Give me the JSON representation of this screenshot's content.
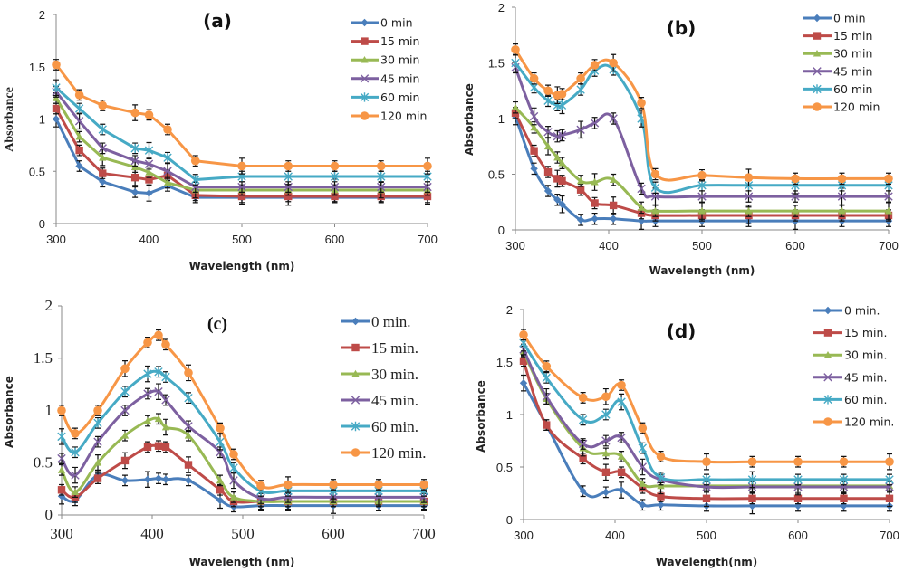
{
  "chart_data": [
    {
      "type": "line",
      "title": "(a)",
      "xlabel": "Wavelength (nm)",
      "ylabel": "Absorbance",
      "xlim": [
        300,
        700
      ],
      "ylim": [
        0,
        2
      ],
      "xticks": [
        300,
        400,
        500,
        600,
        700
      ],
      "yticks": [
        0,
        0.5,
        1,
        1.5,
        2
      ],
      "yticklabels": [
        "0",
        "0.5",
        "1",
        "1.5",
        "2"
      ],
      "smooth": false,
      "error_bars": true,
      "grid": false,
      "legend_position": "top-right",
      "x": [
        300,
        325,
        350,
        385,
        400,
        420,
        450,
        500,
        550,
        600,
        650,
        700
      ],
      "series": [
        {
          "name": "0 min",
          "color": "#4a7ebb",
          "marker": "diamond",
          "values": [
            1.0,
            0.55,
            0.4,
            0.3,
            0.29,
            0.36,
            0.25,
            0.25,
            0.25,
            0.25,
            0.25,
            0.25
          ]
        },
        {
          "name": "15 min",
          "color": "#be4b48",
          "marker": "square",
          "values": [
            1.1,
            0.7,
            0.48,
            0.44,
            0.42,
            0.46,
            0.27,
            0.26,
            0.26,
            0.26,
            0.26,
            0.26
          ]
        },
        {
          "name": "30 min",
          "color": "#98b954",
          "marker": "triangle",
          "values": [
            1.2,
            0.83,
            0.63,
            0.54,
            0.49,
            0.39,
            0.32,
            0.32,
            0.32,
            0.32,
            0.32,
            0.32
          ]
        },
        {
          "name": "45 min",
          "color": "#7d60a0",
          "marker": "x",
          "values": [
            1.26,
            0.98,
            0.72,
            0.6,
            0.57,
            0.5,
            0.35,
            0.35,
            0.35,
            0.35,
            0.35,
            0.35
          ]
        },
        {
          "name": "60 min",
          "color": "#46aac5",
          "marker": "asterisk",
          "values": [
            1.3,
            1.1,
            0.9,
            0.72,
            0.7,
            0.63,
            0.42,
            0.45,
            0.45,
            0.45,
            0.45,
            0.45
          ]
        },
        {
          "name": "120 min",
          "color": "#f79646",
          "marker": "circle",
          "values": [
            1.52,
            1.23,
            1.13,
            1.06,
            1.04,
            0.9,
            0.6,
            0.55,
            0.55,
            0.55,
            0.55,
            0.55
          ]
        }
      ]
    },
    {
      "type": "line",
      "title": "(b)",
      "xlabel": "Wavelength (nm)",
      "ylabel": "Absorbance",
      "xlim": [
        300,
        700
      ],
      "ylim": [
        0,
        2
      ],
      "xticks": [
        300,
        400,
        500,
        600,
        700
      ],
      "yticks": [
        0,
        0.5,
        1,
        1.5,
        2
      ],
      "yticklabels": [
        "0",
        "0.5",
        "1",
        "1.5",
        "2"
      ],
      "smooth": true,
      "error_bars": true,
      "grid": false,
      "legend_position": "top-right",
      "x": [
        300,
        320,
        335,
        345,
        350,
        370,
        385,
        405,
        435,
        450,
        500,
        550,
        600,
        650,
        700
      ],
      "series": [
        {
          "name": "0 min",
          "color": "#4a7ebb",
          "marker": "diamond",
          "values": [
            1.02,
            0.55,
            0.35,
            0.27,
            0.23,
            0.09,
            0.1,
            0.1,
            0.08,
            0.08,
            0.08,
            0.08,
            0.08,
            0.08,
            0.08
          ]
        },
        {
          "name": "15 min",
          "color": "#be4b48",
          "marker": "square",
          "values": [
            1.05,
            0.71,
            0.52,
            0.46,
            0.44,
            0.36,
            0.24,
            0.22,
            0.15,
            0.13,
            0.13,
            0.13,
            0.13,
            0.13,
            0.13
          ]
        },
        {
          "name": "30 min",
          "color": "#98b954",
          "marker": "triangle",
          "values": [
            1.1,
            0.92,
            0.75,
            0.65,
            0.6,
            0.44,
            0.43,
            0.45,
            0.2,
            0.17,
            0.17,
            0.17,
            0.17,
            0.17,
            0.17
          ]
        },
        {
          "name": "45 min",
          "color": "#7d60a0",
          "marker": "x",
          "values": [
            1.46,
            1.02,
            0.88,
            0.84,
            0.85,
            0.9,
            0.96,
            1.0,
            0.37,
            0.3,
            0.3,
            0.3,
            0.3,
            0.3,
            0.3
          ]
        },
        {
          "name": "60 min",
          "color": "#46aac5",
          "marker": "asterisk",
          "values": [
            1.5,
            1.28,
            1.16,
            1.12,
            1.12,
            1.26,
            1.43,
            1.44,
            1.0,
            0.38,
            0.4,
            0.4,
            0.4,
            0.4,
            0.4
          ]
        },
        {
          "name": "120 min",
          "color": "#f79646",
          "marker": "circle",
          "values": [
            1.62,
            1.36,
            1.25,
            1.21,
            1.22,
            1.36,
            1.48,
            1.5,
            1.14,
            0.5,
            0.49,
            0.47,
            0.46,
            0.46,
            0.46
          ]
        }
      ]
    },
    {
      "type": "line",
      "title": "(c)",
      "xlabel": "Wavelength (nm)",
      "ylabel": "Absorbance",
      "xlim": [
        300,
        700
      ],
      "ylim": [
        0,
        2
      ],
      "xticks": [
        300,
        400,
        500,
        600,
        700
      ],
      "yticks": [
        0,
        0.5,
        1,
        1.5,
        2
      ],
      "yticklabels": [
        "0",
        "0.5",
        "1",
        "1.5",
        "2"
      ],
      "smooth": true,
      "error_bars": true,
      "grid": false,
      "legend_position": "top-right",
      "x": [
        300,
        315,
        340,
        370,
        395,
        407,
        415,
        440,
        475,
        490,
        520,
        550,
        600,
        650,
        700
      ],
      "series": [
        {
          "name": "0 min.",
          "color": "#4a7ebb",
          "marker": "diamond",
          "values": [
            0.18,
            0.14,
            0.38,
            0.33,
            0.34,
            0.35,
            0.34,
            0.33,
            0.14,
            0.08,
            0.09,
            0.09,
            0.09,
            0.09,
            0.09
          ]
        },
        {
          "name": "15 min.",
          "color": "#be4b48",
          "marker": "square",
          "values": [
            0.24,
            0.17,
            0.35,
            0.52,
            0.65,
            0.66,
            0.65,
            0.48,
            0.24,
            0.13,
            0.13,
            0.13,
            0.13,
            0.13,
            0.13
          ]
        },
        {
          "name": "30 min.",
          "color": "#98b954",
          "marker": "triangle",
          "values": [
            0.43,
            0.22,
            0.5,
            0.76,
            0.9,
            0.92,
            0.84,
            0.76,
            0.33,
            0.17,
            0.13,
            0.13,
            0.13,
            0.13,
            0.13
          ]
        },
        {
          "name": "45 min.",
          "color": "#7d60a0",
          "marker": "x",
          "values": [
            0.54,
            0.38,
            0.7,
            1.0,
            1.16,
            1.18,
            1.1,
            0.85,
            0.6,
            0.33,
            0.16,
            0.17,
            0.17,
            0.17,
            0.17
          ]
        },
        {
          "name": "60 min.",
          "color": "#46aac5",
          "marker": "asterisk",
          "values": [
            0.75,
            0.6,
            0.88,
            1.18,
            1.35,
            1.37,
            1.32,
            1.12,
            0.7,
            0.45,
            0.23,
            0.23,
            0.23,
            0.23,
            0.23
          ]
        },
        {
          "name": "120 min.",
          "color": "#f79646",
          "marker": "circle",
          "values": [
            1.0,
            0.78,
            1.0,
            1.4,
            1.65,
            1.72,
            1.63,
            1.36,
            0.83,
            0.58,
            0.28,
            0.29,
            0.29,
            0.29,
            0.29
          ]
        }
      ]
    },
    {
      "type": "line",
      "title": "(d)",
      "xlabel": "Wavelength(nm)",
      "ylabel": "Absorbance",
      "xlim": [
        300,
        700
      ],
      "ylim": [
        0,
        2
      ],
      "xticks": [
        300,
        400,
        500,
        600,
        700
      ],
      "yticks": [
        0,
        0.5,
        1,
        1.5,
        2
      ],
      "yticklabels": [
        "0",
        "0.5",
        "1",
        "1.5",
        "2"
      ],
      "smooth": true,
      "error_bars": true,
      "grid": false,
      "legend_position": "top-right",
      "x": [
        300,
        325,
        365,
        390,
        407,
        430,
        450,
        500,
        550,
        600,
        650,
        700
      ],
      "series": [
        {
          "name": "0 min.",
          "color": "#4a7ebb",
          "marker": "diamond",
          "values": [
            1.3,
            0.9,
            0.27,
            0.26,
            0.28,
            0.14,
            0.14,
            0.13,
            0.13,
            0.13,
            0.13,
            0.13
          ]
        },
        {
          "name": "15 min.",
          "color": "#be4b48",
          "marker": "square",
          "values": [
            1.51,
            0.9,
            0.58,
            0.45,
            0.45,
            0.3,
            0.22,
            0.2,
            0.2,
            0.2,
            0.2,
            0.2
          ]
        },
        {
          "name": "30 min.",
          "color": "#98b954",
          "marker": "triangle",
          "values": [
            1.6,
            1.15,
            0.68,
            0.63,
            0.6,
            0.34,
            0.32,
            0.32,
            0.32,
            0.32,
            0.32,
            0.32
          ]
        },
        {
          "name": "45 min.",
          "color": "#7d60a0",
          "marker": "x",
          "values": [
            1.62,
            1.17,
            0.72,
            0.75,
            0.78,
            0.5,
            0.38,
            0.31,
            0.31,
            0.31,
            0.31,
            0.31
          ]
        },
        {
          "name": "60 min.",
          "color": "#46aac5",
          "marker": "asterisk",
          "values": [
            1.68,
            1.35,
            0.95,
            1.0,
            1.12,
            0.68,
            0.4,
            0.38,
            0.38,
            0.38,
            0.38,
            0.38
          ]
        },
        {
          "name": "120 min.",
          "color": "#f79646",
          "marker": "circle",
          "values": [
            1.76,
            1.46,
            1.16,
            1.17,
            1.28,
            0.87,
            0.6,
            0.55,
            0.55,
            0.55,
            0.55,
            0.55
          ]
        }
      ]
    }
  ]
}
